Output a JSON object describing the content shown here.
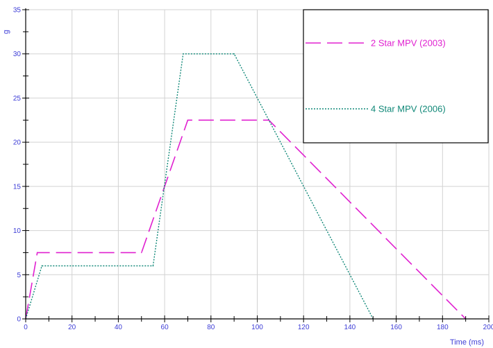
{
  "chart_data": {
    "type": "line",
    "xlabel": "Time (ms)",
    "ylabel": "g",
    "xlim": [
      0,
      200
    ],
    "ylim": [
      0,
      35
    ],
    "x_ticks": [
      0,
      20,
      40,
      60,
      80,
      100,
      120,
      140,
      160,
      180,
      200
    ],
    "y_ticks": [
      0,
      5,
      10,
      15,
      20,
      25,
      30,
      35
    ],
    "grid": true,
    "legend_position": "top-right",
    "series": [
      {
        "name": "2 Star MPV (2003)",
        "color": "#e020d0",
        "style": "dashed",
        "points": [
          [
            0,
            0
          ],
          [
            5,
            7.5
          ],
          [
            50,
            7.5
          ],
          [
            70,
            22.5
          ],
          [
            105,
            22.5
          ],
          [
            190,
            0
          ]
        ]
      },
      {
        "name": "4 Star MPV (2006)",
        "color": "#108878",
        "style": "dotted",
        "points": [
          [
            0,
            0
          ],
          [
            7,
            6
          ],
          [
            55,
            6
          ],
          [
            68,
            30
          ],
          [
            90,
            30
          ],
          [
            150,
            0
          ]
        ]
      }
    ]
  }
}
